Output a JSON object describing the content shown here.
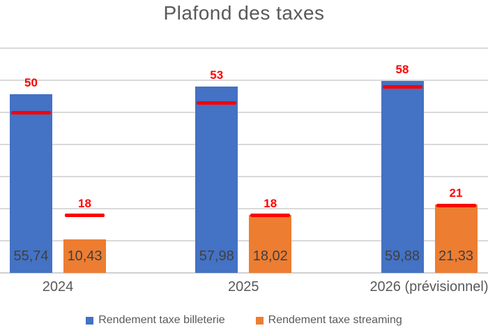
{
  "chart_data": {
    "type": "bar",
    "title": "Plafond des taxes",
    "categories": [
      "2024",
      "2025",
      "2026 (prévisionnel)"
    ],
    "series": [
      {
        "name": "Rendement taxe billeterie",
        "color": "#4472C4",
        "values": [
          55.74,
          57.98,
          59.88
        ],
        "value_labels": [
          "55,74",
          "57,98",
          "59,88"
        ]
      },
      {
        "name": "Rendement taxe streaming",
        "color": "#ED7D31",
        "values": [
          10.43,
          18.02,
          21.33
        ],
        "value_labels": [
          "10,43",
          "18,02",
          "21,33"
        ]
      }
    ],
    "ceiling_markers": {
      "color": "#FF0000",
      "style": "horizontal-dash",
      "series": [
        {
          "for": "Rendement taxe billeterie",
          "values": [
            50,
            53,
            58
          ],
          "labels": [
            "50",
            "53",
            "58"
          ]
        },
        {
          "for": "Rendement taxe streaming",
          "values": [
            18,
            18,
            21
          ],
          "labels": [
            "18",
            "18",
            "21"
          ]
        }
      ]
    },
    "ylim": [
      0,
      70
    ],
    "grid_step": 10,
    "grid": true,
    "y_axis_labels_visible": false,
    "legend_position": "bottom",
    "colors": {
      "title_text": "#595959",
      "category_text": "#595959",
      "value_label_text": "#404040",
      "marker_label_text": "#FF0000",
      "gridline": "#D9D9D9",
      "background": "#FFFFFF"
    }
  }
}
